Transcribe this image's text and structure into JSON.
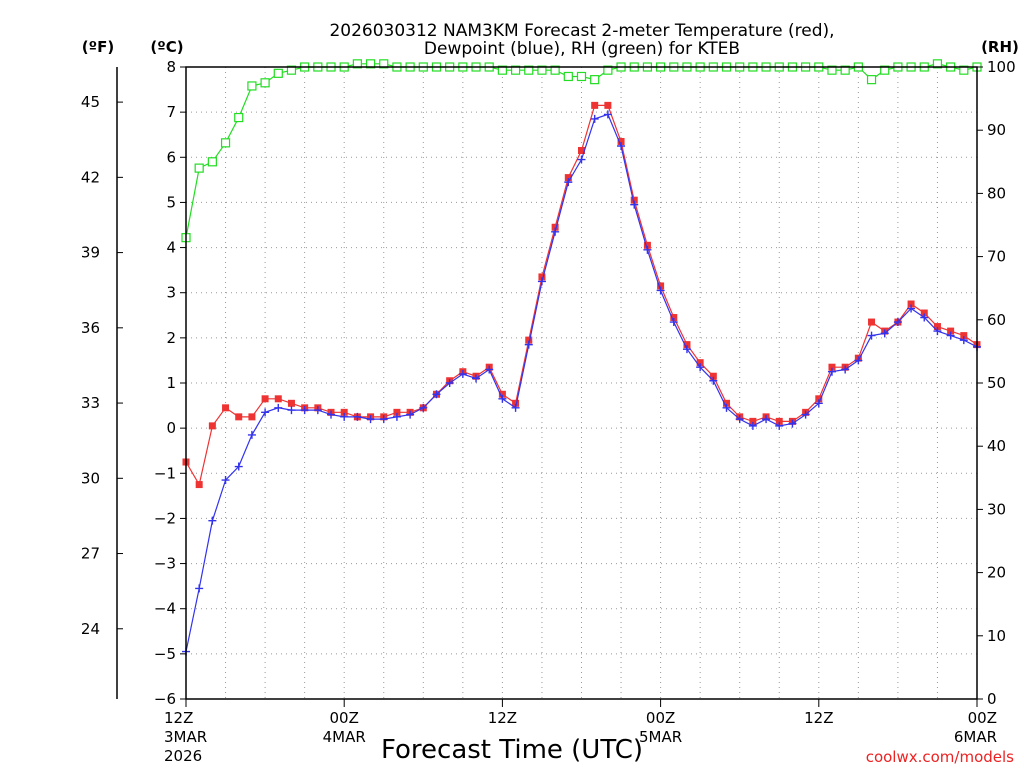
{
  "chart_data": {
    "type": "line",
    "title": "2026030312 NAM3KM Forecast 2-meter Temperature (red),",
    "subtitle": "Dewpoint (blue), RH (green) for KTEB",
    "xlabel": "Forecast Time (UTC)",
    "credit": "coolwx.com/models",
    "y_units": {
      "fahrenheit": "(ºF)",
      "celsius": "(ºC)",
      "rh": "(RH)"
    },
    "x_hours_range": [
      0,
      60
    ],
    "x_ticks": [
      {
        "hour": 0,
        "l1": "12Z",
        "l2": "3MAR",
        "l3": "2026"
      },
      {
        "hour": 12,
        "l1": "00Z",
        "l2": "4MAR",
        "l3": ""
      },
      {
        "hour": 24,
        "l1": "12Z",
        "l2": "",
        "l3": ""
      },
      {
        "hour": 36,
        "l1": "00Z",
        "l2": "5MAR",
        "l3": ""
      },
      {
        "hour": 48,
        "l1": "12Z",
        "l2": "",
        "l3": ""
      },
      {
        "hour": 60,
        "l1": "00Z",
        "l2": "6MAR",
        "l3": ""
      }
    ],
    "y_celsius_range": [
      -6,
      8
    ],
    "y_celsius_ticks": [
      -6,
      -5,
      -4,
      -3,
      -2,
      -1,
      0,
      1,
      2,
      3,
      4,
      5,
      6,
      7,
      8
    ],
    "y_fahrenheit_ticks": [
      24,
      27,
      30,
      33,
      36,
      39,
      42,
      45
    ],
    "y_rh_range": [
      0,
      100
    ],
    "y_rh_ticks": [
      0,
      10,
      20,
      30,
      40,
      50,
      60,
      70,
      80,
      90,
      100
    ],
    "grid": true,
    "colors": {
      "temperature": "#ee3333",
      "dewpoint": "#3333ee",
      "rh": "#22dd22"
    },
    "series": [
      {
        "name": "Temperature",
        "unit": "C",
        "x": [
          0,
          1,
          2,
          3,
          4,
          5,
          6,
          7,
          8,
          9,
          10,
          11,
          12,
          13,
          14,
          15,
          16,
          17,
          18,
          19,
          20,
          21,
          22,
          23,
          24,
          25,
          26,
          27,
          28,
          29,
          30,
          31,
          32,
          33,
          34,
          35,
          36,
          37,
          38,
          39,
          40,
          41,
          42,
          43,
          44,
          45,
          46,
          47,
          48,
          49,
          50,
          51,
          52,
          53,
          54,
          55,
          56,
          57,
          58,
          59,
          60
        ],
        "values": [
          -0.75,
          -1.25,
          0.05,
          0.45,
          0.25,
          0.25,
          0.65,
          0.65,
          0.55,
          0.45,
          0.45,
          0.35,
          0.35,
          0.25,
          0.25,
          0.25,
          0.35,
          0.35,
          0.45,
          0.75,
          1.05,
          1.25,
          1.15,
          1.35,
          0.75,
          0.55,
          1.95,
          3.35,
          4.45,
          5.55,
          6.15,
          7.15,
          7.15,
          6.35,
          5.05,
          4.05,
          3.15,
          2.45,
          1.85,
          1.45,
          1.15,
          0.55,
          0.25,
          0.15,
          0.25,
          0.15,
          0.15,
          0.35,
          0.65,
          1.35,
          1.35,
          1.55,
          2.35,
          2.15,
          2.35,
          2.75,
          2.55,
          2.25,
          2.15,
          2.05,
          1.85
        ]
      },
      {
        "name": "Dewpoint",
        "unit": "C",
        "x": [
          0,
          1,
          2,
          3,
          4,
          5,
          6,
          7,
          8,
          9,
          10,
          11,
          12,
          13,
          14,
          15,
          16,
          17,
          18,
          19,
          20,
          21,
          22,
          23,
          24,
          25,
          26,
          27,
          28,
          29,
          30,
          31,
          32,
          33,
          34,
          35,
          36,
          37,
          38,
          39,
          40,
          41,
          42,
          43,
          44,
          45,
          46,
          47,
          48,
          49,
          50,
          51,
          52,
          53,
          54,
          55,
          56,
          57,
          58,
          59,
          60
        ],
        "values": [
          -4.95,
          -3.55,
          -2.05,
          -1.15,
          -0.85,
          -0.15,
          0.35,
          0.45,
          0.4,
          0.4,
          0.4,
          0.3,
          0.25,
          0.25,
          0.2,
          0.2,
          0.25,
          0.3,
          0.45,
          0.75,
          1.0,
          1.2,
          1.1,
          1.3,
          0.65,
          0.45,
          1.85,
          3.25,
          4.35,
          5.45,
          5.95,
          6.85,
          6.95,
          6.25,
          4.95,
          3.95,
          3.05,
          2.35,
          1.75,
          1.35,
          1.05,
          0.45,
          0.2,
          0.05,
          0.2,
          0.05,
          0.1,
          0.3,
          0.55,
          1.25,
          1.3,
          1.5,
          2.05,
          2.1,
          2.35,
          2.65,
          2.45,
          2.15,
          2.05,
          1.95,
          1.8
        ]
      },
      {
        "name": "RH",
        "unit": "%",
        "x": [
          0,
          1,
          2,
          3,
          4,
          5,
          6,
          7,
          8,
          9,
          10,
          11,
          12,
          13,
          14,
          15,
          16,
          17,
          18,
          19,
          20,
          21,
          22,
          23,
          24,
          25,
          26,
          27,
          28,
          29,
          30,
          31,
          32,
          33,
          34,
          35,
          36,
          37,
          38,
          39,
          40,
          41,
          42,
          43,
          44,
          45,
          46,
          47,
          48,
          49,
          50,
          51,
          52,
          53,
          54,
          55,
          56,
          57,
          58,
          59,
          60
        ],
        "values": [
          73,
          84,
          85,
          88,
          92,
          97,
          97.5,
          99,
          99.5,
          100,
          100,
          100,
          100,
          100.5,
          100.5,
          100.5,
          100,
          100,
          100,
          100,
          100,
          100,
          100,
          100,
          99.5,
          99.5,
          99.5,
          99.5,
          99.5,
          98.5,
          98.5,
          98,
          99.5,
          100,
          100,
          100,
          100,
          100,
          100,
          100,
          100,
          100,
          100,
          100,
          100,
          100,
          100,
          100,
          100,
          99.5,
          99.5,
          100,
          98,
          99.5,
          100,
          100,
          100,
          100.5,
          100,
          99.5,
          100
        ]
      }
    ]
  }
}
